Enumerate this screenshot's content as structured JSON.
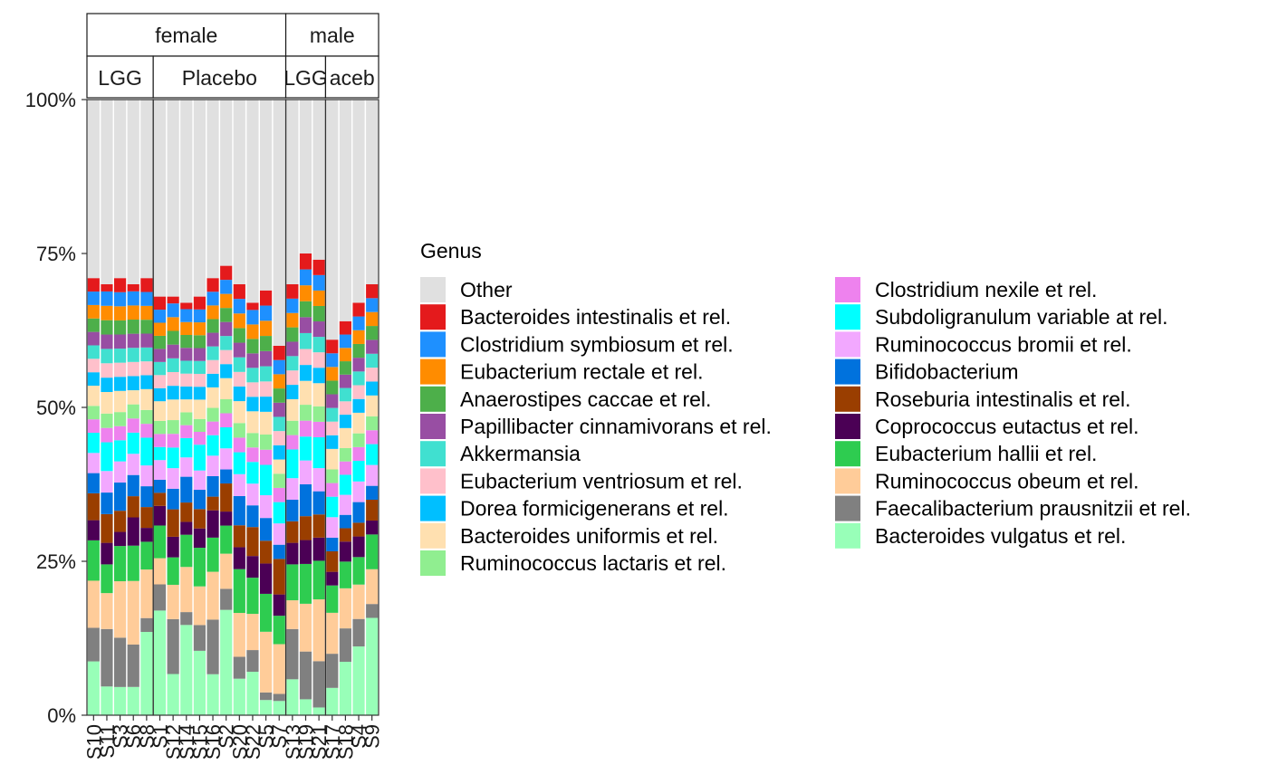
{
  "chart_data": {
    "type": "bar",
    "stacked": true,
    "ylim": [
      0,
      1
    ],
    "y_ticks": [
      "0%",
      "25%",
      "50%",
      "75%",
      "100%"
    ],
    "legend_title": "Genus",
    "legend_position": "right",
    "facets": {
      "rows": [
        "female",
        "male"
      ],
      "groups": [
        {
          "sex": "female",
          "treatment": "LGG",
          "strip_label": "LGG",
          "samples": [
            "S10",
            "S11",
            "S3",
            "S6",
            "S8"
          ]
        },
        {
          "sex": "female",
          "treatment": "Placebo",
          "strip_label": "Placebo",
          "samples": [
            "S1",
            "S12",
            "S14",
            "S15",
            "S16",
            "S2",
            "S20",
            "S22",
            "S5",
            "S7"
          ]
        },
        {
          "sex": "male",
          "treatment": "LGG",
          "strip_label": "LGG",
          "samples": [
            "S13",
            "S19",
            "S21"
          ]
        },
        {
          "sex": "male",
          "treatment": "Placebo",
          "strip_label": "aceb",
          "samples": [
            "S17",
            "S18",
            "S4",
            "S9"
          ]
        }
      ]
    },
    "x_tick_labels": [
      "S10",
      "S11",
      "S3",
      "S6",
      "S8",
      "S1",
      "S12",
      "S14",
      "S15",
      "S16",
      "S2",
      "S20",
      "S22",
      "S5",
      "S7",
      "S13",
      "S19",
      "S21",
      "S17",
      "S18",
      "S4",
      "S9"
    ],
    "top_total": [
      0.71,
      0.7,
      0.71,
      0.7,
      0.71,
      0.68,
      0.68,
      0.67,
      0.68,
      0.71,
      0.73,
      0.7,
      0.67,
      0.69,
      0.6,
      0.7,
      0.75,
      0.74,
      0.61,
      0.64,
      0.67,
      0.7
    ],
    "series": [
      {
        "name": "Bacteroides vulgatus et rel.",
        "color": "#98FFB8",
        "values": [
          0.08,
          0.04,
          0.04,
          0.04,
          0.12,
          0.16,
          0.06,
          0.14,
          0.1,
          0.06,
          0.15,
          0.05,
          0.06,
          0.02,
          0.02,
          0.05,
          0.02,
          0.01,
          0.04,
          0.08,
          0.1,
          0.14
        ]
      },
      {
        "name": "Faecalibacterium prausnitzii et rel.",
        "color": "#808080",
        "values": [
          0.05,
          0.08,
          0.07,
          0.06,
          0.02,
          0.04,
          0.08,
          0.02,
          0.04,
          0.08,
          0.03,
          0.03,
          0.03,
          0.01,
          0.01,
          0.07,
          0.06,
          0.06,
          0.05,
          0.05,
          0.04,
          0.02
        ]
      },
      {
        "name": "Ruminococcus obeum et rel.",
        "color": "#FFCC99",
        "values": [
          0.07,
          0.05,
          0.08,
          0.09,
          0.07,
          0.04,
          0.05,
          0.07,
          0.06,
          0.07,
          0.05,
          0.06,
          0.05,
          0.08,
          0.07,
          0.04,
          0.06,
          0.08,
          0.06,
          0.06,
          0.05,
          0.05
        ]
      },
      {
        "name": "Eubacterium hallii et rel.",
        "color": "#2ECC50",
        "values": [
          0.06,
          0.04,
          0.05,
          0.05,
          0.04,
          0.05,
          0.04,
          0.05,
          0.06,
          0.05,
          0.04,
          0.06,
          0.05,
          0.05,
          0.04,
          0.05,
          0.05,
          0.05,
          0.04,
          0.04,
          0.04,
          0.05
        ]
      },
      {
        "name": "Coprococcus eutactus et rel.",
        "color": "#4B0055",
        "values": [
          0.03,
          0.03,
          0.02,
          0.04,
          0.02,
          0.03,
          0.03,
          0.02,
          0.03,
          0.04,
          0.02,
          0.03,
          0.03,
          0.04,
          0.03,
          0.03,
          0.03,
          0.03,
          0.02,
          0.03,
          0.03,
          0.02
        ]
      },
      {
        "name": "Roseburia intestinalis et rel.",
        "color": "#9A3E00",
        "values": [
          0.04,
          0.04,
          0.03,
          0.03,
          0.03,
          0.02,
          0.04,
          0.03,
          0.03,
          0.02,
          0.04,
          0.03,
          0.04,
          0.03,
          0.05,
          0.03,
          0.03,
          0.03,
          0.03,
          0.02,
          0.02,
          0.03
        ]
      },
      {
        "name": "Bifidobacterium",
        "color": "#0072DD",
        "values": [
          0.03,
          0.03,
          0.04,
          0.03,
          0.03,
          0.02,
          0.03,
          0.04,
          0.03,
          0.03,
          0.02,
          0.04,
          0.03,
          0.03,
          0.02,
          0.03,
          0.04,
          0.03,
          0.02,
          0.02,
          0.03,
          0.02
        ]
      },
      {
        "name": "Ruminococcus bromii et rel.",
        "color": "#F2A8FF",
        "values": [
          0.03,
          0.03,
          0.03,
          0.03,
          0.03,
          0.03,
          0.03,
          0.03,
          0.03,
          0.03,
          0.03,
          0.03,
          0.03,
          0.03,
          0.03,
          0.03,
          0.03,
          0.03,
          0.03,
          0.03,
          0.03,
          0.03
        ]
      },
      {
        "name": "Subdoligranulum variable at rel.",
        "color": "#00FFFF",
        "values": [
          0.03,
          0.04,
          0.03,
          0.03,
          0.04,
          0.02,
          0.03,
          0.03,
          0.04,
          0.03,
          0.03,
          0.03,
          0.03,
          0.04,
          0.03,
          0.04,
          0.03,
          0.04,
          0.03,
          0.03,
          0.03,
          0.03
        ]
      },
      {
        "name": "Clostridium nexile et rel.",
        "color": "#EE82EE",
        "values": [
          0.02,
          0.02,
          0.02,
          0.02,
          0.02,
          0.02,
          0.02,
          0.02,
          0.02,
          0.02,
          0.02,
          0.02,
          0.02,
          0.02,
          0.02,
          0.02,
          0.02,
          0.02,
          0.02,
          0.02,
          0.02,
          0.02
        ]
      },
      {
        "name": "Ruminococcus lactaris et rel.",
        "color": "#90EE90",
        "values": [
          0.02,
          0.02,
          0.02,
          0.02,
          0.02,
          0.02,
          0.02,
          0.02,
          0.02,
          0.02,
          0.02,
          0.02,
          0.02,
          0.02,
          0.02,
          0.02,
          0.02,
          0.02,
          0.02,
          0.02,
          0.02,
          0.02
        ]
      },
      {
        "name": "Bacteroides uniformis et rel.",
        "color": "#FFE0B0",
        "values": [
          0.03,
          0.03,
          0.03,
          0.02,
          0.03,
          0.03,
          0.03,
          0.02,
          0.03,
          0.03,
          0.03,
          0.03,
          0.03,
          0.03,
          0.02,
          0.03,
          0.03,
          0.03,
          0.03,
          0.03,
          0.03,
          0.03
        ]
      },
      {
        "name": "Dorea formicigenerans et rel.",
        "color": "#00BFFF",
        "values": [
          0.02,
          0.02,
          0.02,
          0.02,
          0.02,
          0.02,
          0.02,
          0.02,
          0.02,
          0.02,
          0.02,
          0.02,
          0.02,
          0.02,
          0.02,
          0.02,
          0.02,
          0.02,
          0.02,
          0.02,
          0.02,
          0.02
        ]
      },
      {
        "name": "Eubacterium ventriosum et rel.",
        "color": "#FFC0CB",
        "values": [
          0.02,
          0.02,
          0.02,
          0.02,
          0.02,
          0.02,
          0.02,
          0.02,
          0.02,
          0.02,
          0.02,
          0.02,
          0.02,
          0.02,
          0.02,
          0.02,
          0.02,
          0.02,
          0.02,
          0.02,
          0.02,
          0.02
        ]
      },
      {
        "name": "Akkermansia",
        "color": "#40E0D0",
        "values": [
          0.02,
          0.02,
          0.02,
          0.02,
          0.02,
          0.02,
          0.02,
          0.02,
          0.02,
          0.02,
          0.02,
          0.02,
          0.02,
          0.02,
          0.02,
          0.02,
          0.02,
          0.02,
          0.02,
          0.02,
          0.02,
          0.02
        ]
      },
      {
        "name": "Papillibacter cinnamivorans et rel.",
        "color": "#984EA3",
        "values": [
          0.02,
          0.02,
          0.02,
          0.02,
          0.02,
          0.02,
          0.02,
          0.02,
          0.02,
          0.02,
          0.02,
          0.02,
          0.02,
          0.02,
          0.02,
          0.02,
          0.02,
          0.02,
          0.02,
          0.02,
          0.02,
          0.02
        ]
      },
      {
        "name": "Anaerostipes caccae et rel.",
        "color": "#4DAF4A",
        "values": [
          0.02,
          0.02,
          0.02,
          0.02,
          0.02,
          0.02,
          0.02,
          0.02,
          0.02,
          0.02,
          0.02,
          0.02,
          0.02,
          0.02,
          0.02,
          0.02,
          0.02,
          0.02,
          0.02,
          0.02,
          0.02,
          0.02
        ]
      },
      {
        "name": "Eubacterium rectale et rel.",
        "color": "#FF8C00",
        "values": [
          0.02,
          0.02,
          0.02,
          0.02,
          0.02,
          0.02,
          0.02,
          0.02,
          0.02,
          0.02,
          0.02,
          0.02,
          0.02,
          0.02,
          0.02,
          0.02,
          0.02,
          0.02,
          0.02,
          0.02,
          0.02,
          0.02
        ]
      },
      {
        "name": "Clostridium symbiosum et rel.",
        "color": "#1E90FF",
        "values": [
          0.02,
          0.02,
          0.02,
          0.02,
          0.02,
          0.02,
          0.02,
          0.02,
          0.02,
          0.02,
          0.02,
          0.02,
          0.02,
          0.02,
          0.02,
          0.02,
          0.02,
          0.02,
          0.02,
          0.02,
          0.02,
          0.02
        ]
      },
      {
        "name": "Bacteroides intestinalis et rel.",
        "color": "#E41A1C",
        "values": [
          0.02,
          0.01,
          0.02,
          0.01,
          0.02,
          0.02,
          0.01,
          0.01,
          0.02,
          0.02,
          0.02,
          0.02,
          0.01,
          0.02,
          0.02,
          0.02,
          0.02,
          0.02,
          0.02,
          0.02,
          0.02,
          0.02
        ]
      },
      {
        "name": "Other",
        "color": "#E0E0E0",
        "values": "remainder"
      }
    ],
    "legend_order": [
      "Other",
      "Bacteroides intestinalis et rel.",
      "Clostridium symbiosum et rel.",
      "Eubacterium rectale et rel.",
      "Anaerostipes caccae et rel.",
      "Papillibacter cinnamivorans et rel.",
      "Akkermansia",
      "Eubacterium ventriosum et rel.",
      "Dorea formicigenerans et rel.",
      "Bacteroides uniformis et rel.",
      "Ruminococcus lactaris et rel.",
      "Clostridium nexile et rel.",
      "Subdoligranulum variable at rel.",
      "Ruminococcus bromii et rel.",
      "Bifidobacterium",
      "Roseburia intestinalis et rel.",
      "Coprococcus eutactus et rel.",
      "Eubacterium hallii et rel.",
      "Ruminococcus obeum et rel.",
      "Faecalibacterium prausnitzii et rel.",
      "Bacteroides vulgatus et rel."
    ]
  }
}
